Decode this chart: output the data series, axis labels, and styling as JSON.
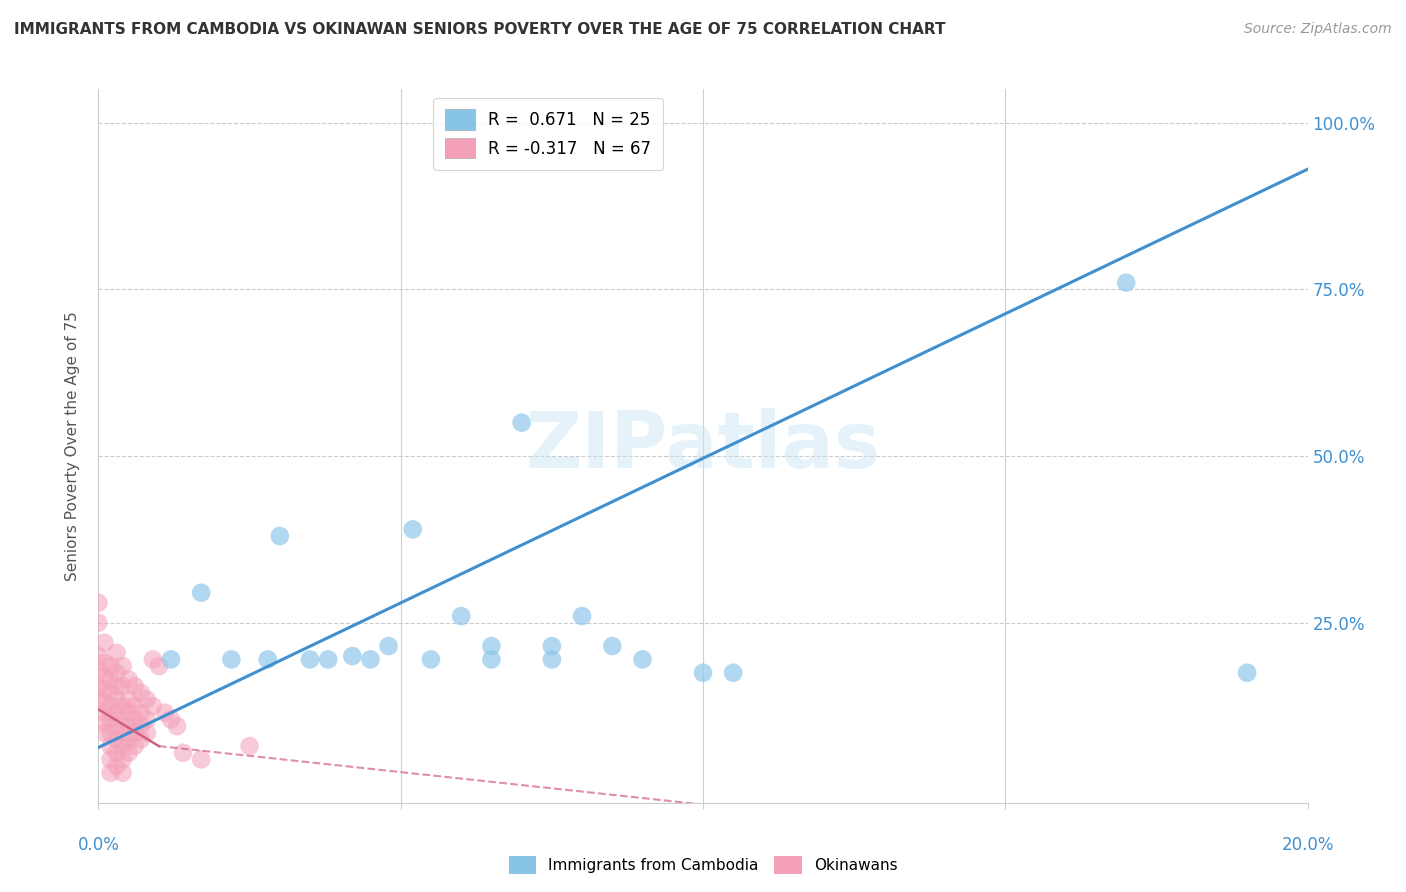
{
  "title": "IMMIGRANTS FROM CAMBODIA VS OKINAWAN SENIORS POVERTY OVER THE AGE OF 75 CORRELATION CHART",
  "source": "Source: ZipAtlas.com",
  "ylabel": "Seniors Poverty Over the Age of 75",
  "xlim": [
    0,
    0.2
  ],
  "ylim": [
    -0.02,
    1.05
  ],
  "watermark": "ZIPatlas",
  "blue_color": "#88c4e8",
  "pink_color": "#f4a0b8",
  "blue_line_color": "#4090d0",
  "pink_line_color": "#d06080",
  "cambodia_points": [
    [
      0.012,
      0.195
    ],
    [
      0.017,
      0.295
    ],
    [
      0.022,
      0.195
    ],
    [
      0.028,
      0.195
    ],
    [
      0.03,
      0.38
    ],
    [
      0.035,
      0.195
    ],
    [
      0.038,
      0.195
    ],
    [
      0.042,
      0.2
    ],
    [
      0.045,
      0.195
    ],
    [
      0.048,
      0.215
    ],
    [
      0.052,
      0.39
    ],
    [
      0.055,
      0.195
    ],
    [
      0.06,
      0.26
    ],
    [
      0.065,
      0.215
    ],
    [
      0.065,
      0.195
    ],
    [
      0.07,
      0.55
    ],
    [
      0.075,
      0.195
    ],
    [
      0.075,
      0.215
    ],
    [
      0.08,
      0.26
    ],
    [
      0.085,
      0.215
    ],
    [
      0.09,
      0.195
    ],
    [
      0.1,
      0.175
    ],
    [
      0.105,
      0.175
    ],
    [
      0.17,
      0.76
    ],
    [
      0.19,
      0.175
    ]
  ],
  "okinawa_points": [
    [
      0.0,
      0.28
    ],
    [
      0.0,
      0.25
    ],
    [
      0.0,
      0.2
    ],
    [
      0.0,
      0.18
    ],
    [
      0.0,
      0.155
    ],
    [
      0.0,
      0.135
    ],
    [
      0.001,
      0.22
    ],
    [
      0.001,
      0.19
    ],
    [
      0.001,
      0.17
    ],
    [
      0.001,
      0.15
    ],
    [
      0.001,
      0.13
    ],
    [
      0.001,
      0.115
    ],
    [
      0.001,
      0.1
    ],
    [
      0.001,
      0.085
    ],
    [
      0.002,
      0.185
    ],
    [
      0.002,
      0.165
    ],
    [
      0.002,
      0.145
    ],
    [
      0.002,
      0.125
    ],
    [
      0.002,
      0.105
    ],
    [
      0.002,
      0.085
    ],
    [
      0.002,
      0.065
    ],
    [
      0.002,
      0.045
    ],
    [
      0.002,
      0.025
    ],
    [
      0.003,
      0.205
    ],
    [
      0.003,
      0.175
    ],
    [
      0.003,
      0.155
    ],
    [
      0.003,
      0.135
    ],
    [
      0.003,
      0.115
    ],
    [
      0.003,
      0.095
    ],
    [
      0.003,
      0.075
    ],
    [
      0.003,
      0.055
    ],
    [
      0.003,
      0.035
    ],
    [
      0.004,
      0.185
    ],
    [
      0.004,
      0.155
    ],
    [
      0.004,
      0.125
    ],
    [
      0.004,
      0.105
    ],
    [
      0.004,
      0.085
    ],
    [
      0.004,
      0.065
    ],
    [
      0.004,
      0.045
    ],
    [
      0.004,
      0.025
    ],
    [
      0.005,
      0.165
    ],
    [
      0.005,
      0.135
    ],
    [
      0.005,
      0.115
    ],
    [
      0.005,
      0.095
    ],
    [
      0.005,
      0.075
    ],
    [
      0.005,
      0.055
    ],
    [
      0.006,
      0.155
    ],
    [
      0.006,
      0.125
    ],
    [
      0.006,
      0.105
    ],
    [
      0.006,
      0.085
    ],
    [
      0.006,
      0.065
    ],
    [
      0.007,
      0.145
    ],
    [
      0.007,
      0.115
    ],
    [
      0.007,
      0.095
    ],
    [
      0.007,
      0.075
    ],
    [
      0.008,
      0.135
    ],
    [
      0.008,
      0.105
    ],
    [
      0.008,
      0.085
    ],
    [
      0.009,
      0.195
    ],
    [
      0.009,
      0.125
    ],
    [
      0.01,
      0.185
    ],
    [
      0.011,
      0.115
    ],
    [
      0.012,
      0.105
    ],
    [
      0.013,
      0.095
    ],
    [
      0.014,
      0.055
    ],
    [
      0.017,
      0.045
    ],
    [
      0.025,
      0.065
    ]
  ],
  "blue_regression": [
    0.0,
    0.063,
    0.2,
    0.93
  ],
  "pink_regression_solid": [
    0.0,
    0.12,
    0.01,
    0.065
  ],
  "pink_regression_dash": [
    0.01,
    0.065,
    0.2,
    -0.12
  ]
}
